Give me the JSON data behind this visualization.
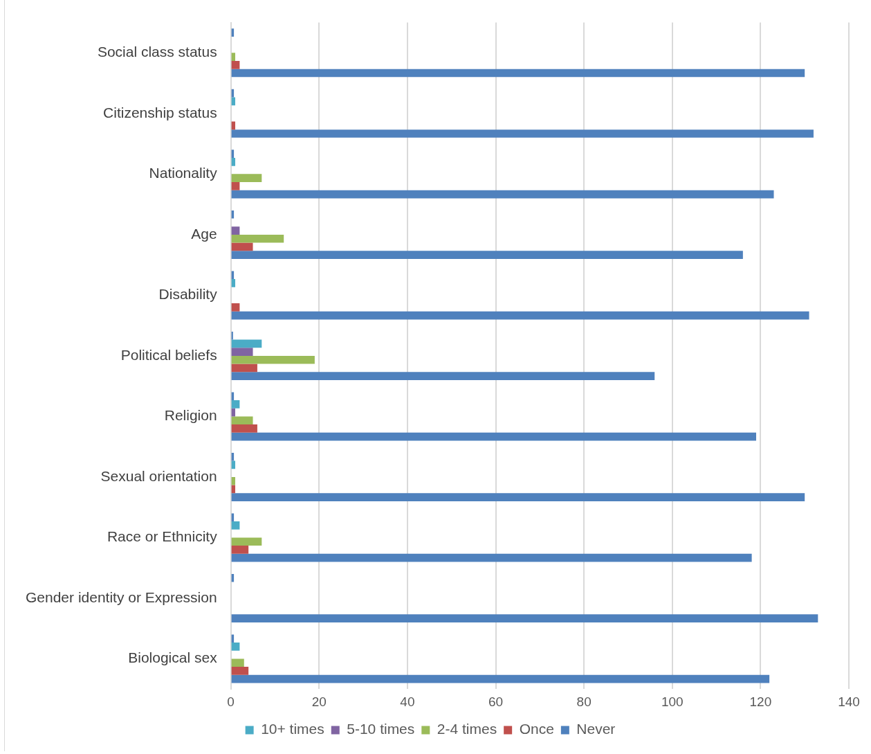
{
  "chart_data": {
    "type": "bar",
    "orientation": "horizontal",
    "categories": [
      "Social class status",
      "Citizenship status",
      "Nationality",
      "Age",
      "Disability",
      "Political beliefs",
      "Religion",
      "Sexual orientation",
      "Race or Ethnicity",
      "Gender identity or Expression",
      "Biological sex"
    ],
    "series": [
      {
        "color": "#4f81bd",
        "values": [
          0.7,
          0.7,
          0.7,
          0.7,
          0.7,
          0.5,
          0.7,
          0.7,
          0.7,
          0.7,
          0.7
        ]
      },
      {
        "name": "10+ times",
        "color": "#4bacc6",
        "values": [
          0,
          1,
          1,
          0,
          1,
          7,
          2,
          1,
          2,
          0,
          2
        ]
      },
      {
        "name": "5-10 times",
        "color": "#8064a2",
        "values": [
          0,
          0,
          0,
          2,
          0,
          5,
          1,
          0,
          0,
          0,
          0
        ]
      },
      {
        "name": "2-4 times",
        "color": "#9bbb59",
        "values": [
          1,
          0,
          7,
          12,
          0,
          19,
          5,
          1,
          7,
          0,
          3
        ]
      },
      {
        "name": "Once",
        "color": "#c0504d",
        "values": [
          2,
          1,
          2,
          5,
          2,
          6,
          6,
          1,
          4,
          0,
          4
        ]
      },
      {
        "name": "Never",
        "color": "#4f81bd",
        "values": [
          130,
          132,
          123,
          116,
          131,
          96,
          119,
          130,
          118,
          133,
          122
        ]
      }
    ],
    "xlim": [
      0,
      140
    ],
    "xticks": [
      0,
      20,
      40,
      60,
      80,
      100,
      120,
      140
    ],
    "grid": "x",
    "legend": "bottom"
  }
}
